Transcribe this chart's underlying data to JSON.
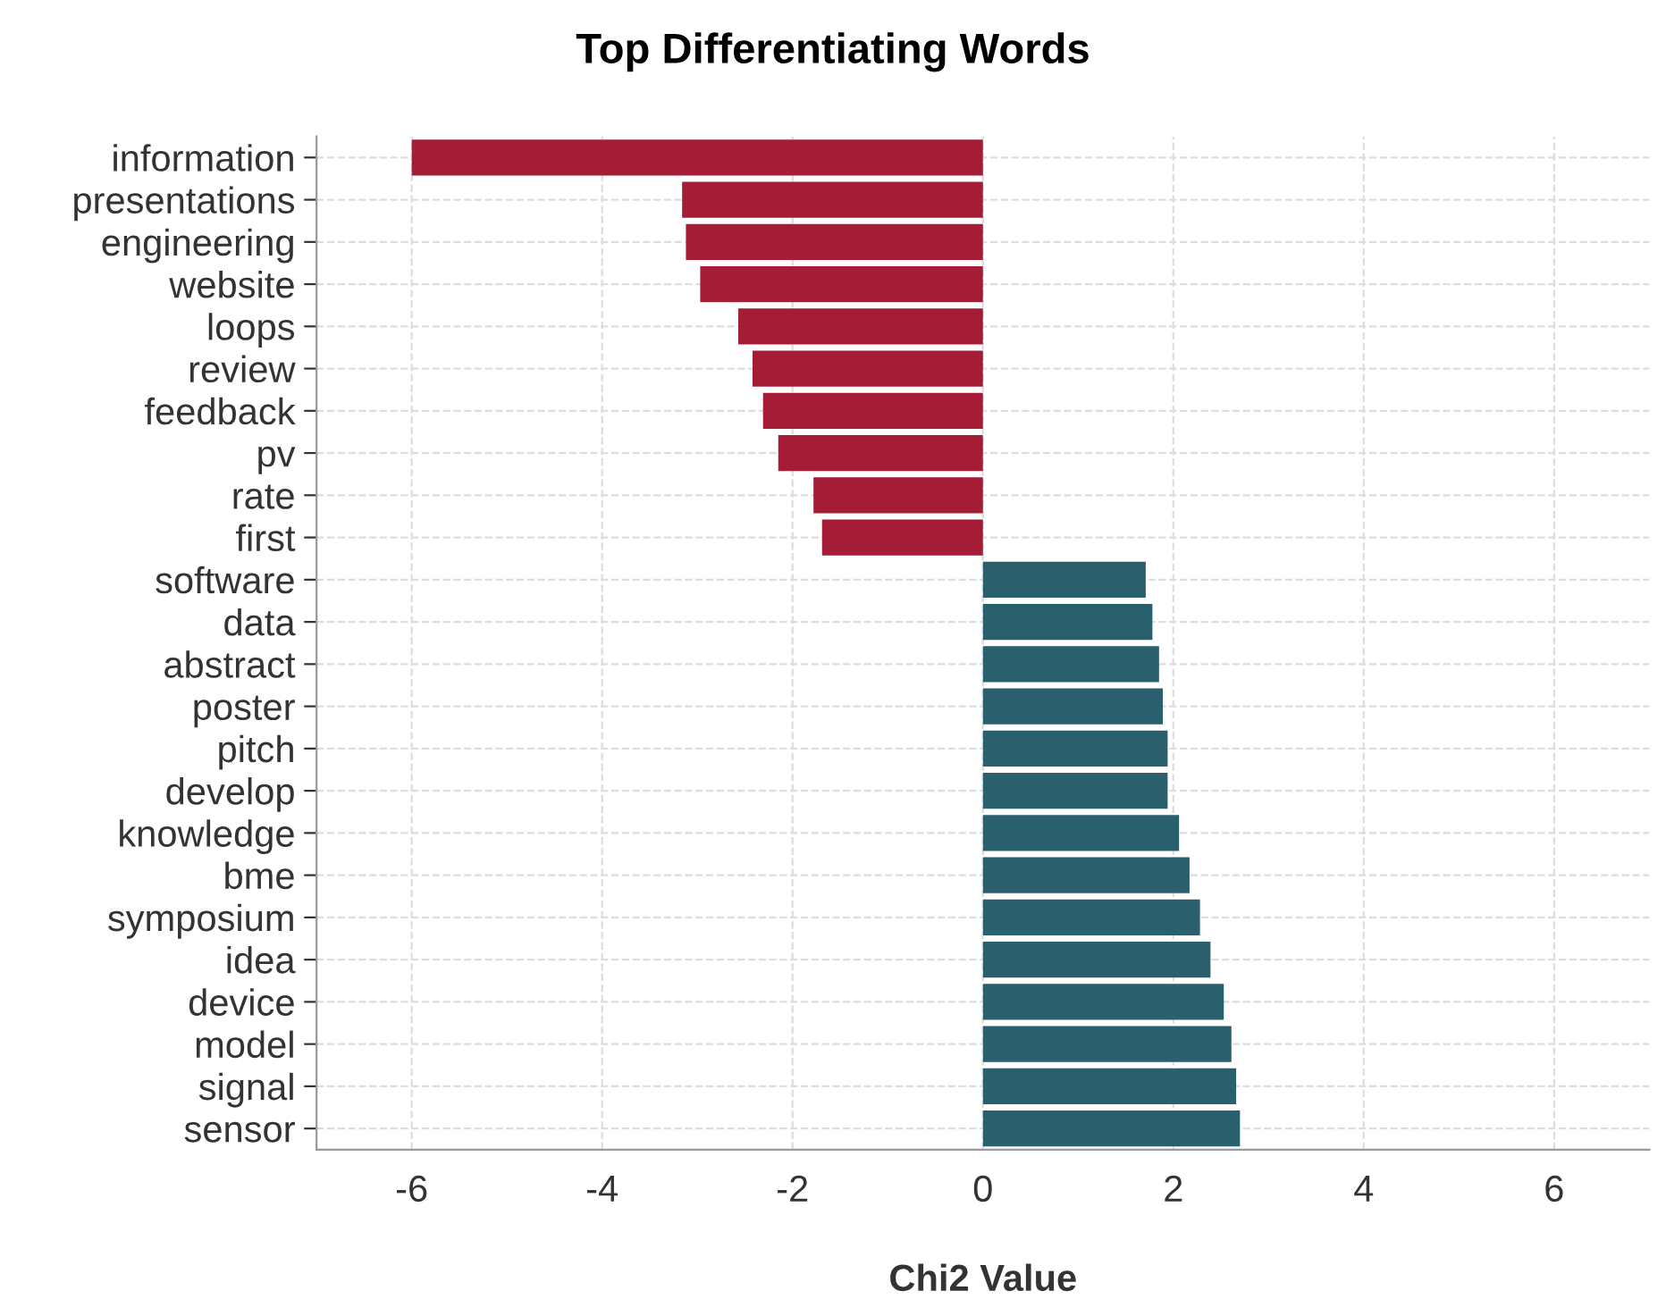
{
  "chart_data": {
    "type": "bar",
    "orientation": "horizontal",
    "title": "Top Differentiating Words",
    "xlabel": "Chi2 Value",
    "categories": [
      "information",
      "presentations",
      "engineering",
      "website",
      "loops",
      "review",
      "feedback",
      "pv",
      "rate",
      "first",
      "software",
      "data",
      "abstract",
      "poster",
      "pitch",
      "develop",
      "knowledge",
      "bme",
      "symposium",
      "idea",
      "device",
      "model",
      "signal",
      "sensor"
    ],
    "values": [
      -6.0,
      -3.16,
      -3.12,
      -2.97,
      -2.57,
      -2.42,
      -2.31,
      -2.15,
      -1.78,
      -1.69,
      1.71,
      1.78,
      1.85,
      1.89,
      1.94,
      1.94,
      2.06,
      2.17,
      2.28,
      2.39,
      2.53,
      2.61,
      2.66,
      2.7
    ],
    "colors": [
      "#a51c36",
      "#a51c36",
      "#a51c36",
      "#a51c36",
      "#a51c36",
      "#a51c36",
      "#a51c36",
      "#a51c36",
      "#a51c36",
      "#a51c36",
      "#2a5f6e",
      "#2a5f6e",
      "#2a5f6e",
      "#2a5f6e",
      "#2a5f6e",
      "#2a5f6e",
      "#2a5f6e",
      "#2a5f6e",
      "#2a5f6e",
      "#2a5f6e",
      "#2a5f6e",
      "#2a5f6e",
      "#2a5f6e",
      "#2a5f6e"
    ],
    "xlim": [
      -7,
      7
    ],
    "xticks": [
      -6,
      -4,
      -2,
      0,
      2,
      4,
      6
    ],
    "grid": true
  }
}
